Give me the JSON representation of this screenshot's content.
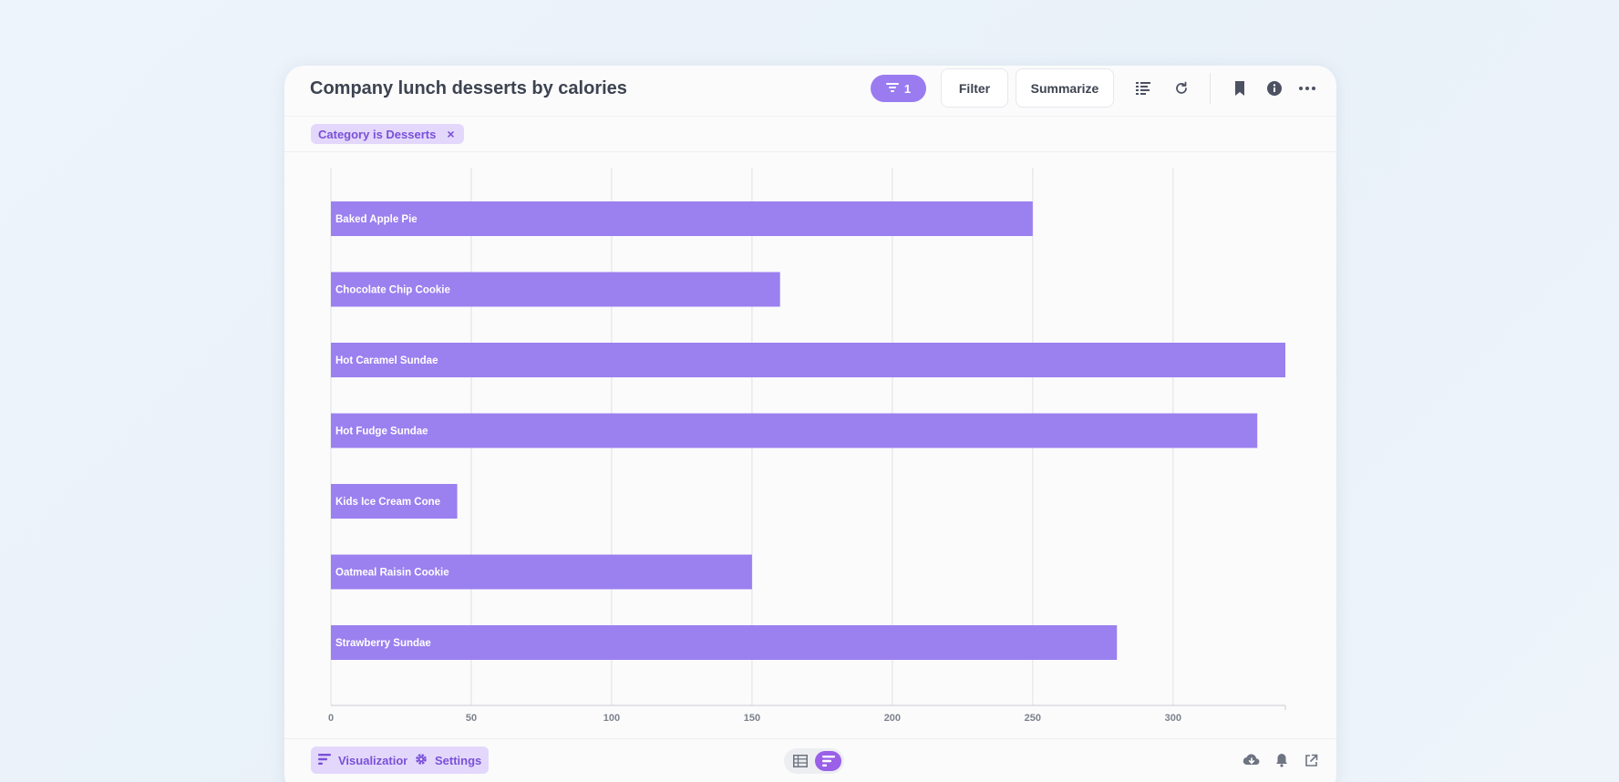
{
  "header": {
    "title": "Company lunch desserts by calories",
    "filter_count": "1",
    "filter_label": "Filter",
    "summarize_label": "Summarize"
  },
  "filter_pill": {
    "label": "Category is Desserts",
    "remove": "×"
  },
  "footer": {
    "visualization_label": "Visualization",
    "settings_label": "Settings"
  },
  "icons": {
    "filter": "filter-icon",
    "editor": "notebook-editor-icon",
    "refresh": "refresh-icon",
    "bookmark": "bookmark-icon",
    "info": "info-icon",
    "more": "more-icon",
    "gear": "gear-icon",
    "table": "table-icon",
    "bar": "bar-chart-icon",
    "download": "download-icon",
    "alert": "bell-icon",
    "share": "share-icon"
  },
  "colors": {
    "accent": "#9a7cf0",
    "bar": "#9b80ef",
    "pill_bg": "#e3d8fb",
    "pill_text": "#7a50d8"
  },
  "chart_data": {
    "type": "bar",
    "orientation": "horizontal",
    "categories": [
      "Baked Apple Pie",
      "Chocolate Chip Cookie",
      "Hot Caramel Sundae",
      "Hot Fudge Sundae",
      "Kids Ice Cream Cone",
      "Oatmeal Raisin Cookie",
      "Strawberry Sundae"
    ],
    "values": [
      250,
      160,
      340,
      330,
      45,
      150,
      280
    ],
    "xticks": [
      0,
      50,
      100,
      150,
      200,
      250,
      300
    ],
    "xlim": [
      0,
      340
    ],
    "grid": true
  }
}
